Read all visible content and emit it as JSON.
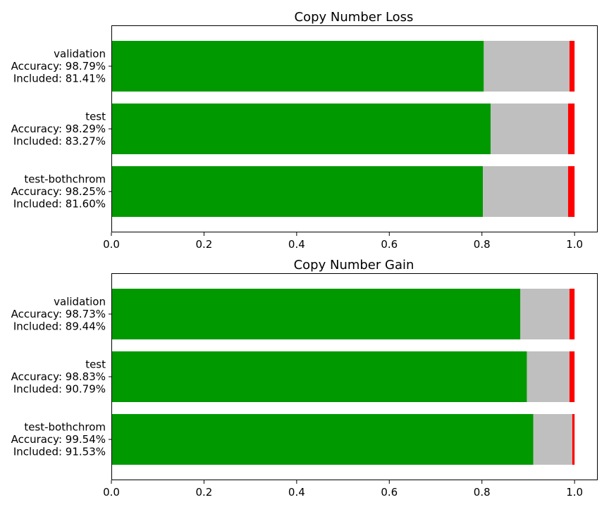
{
  "colors": {
    "correct": "#009900",
    "excluded": "#bfbfbf",
    "incorrect": "#ff0000"
  },
  "chart_data": [
    {
      "type": "bar",
      "orientation": "horizontal",
      "stacked": true,
      "title": "Copy Number Loss",
      "xlim": [
        0.0,
        1.05
      ],
      "xticks": [
        "0.0",
        "0.2",
        "0.4",
        "0.6",
        "0.8",
        "1.0"
      ],
      "grid": false,
      "categories": [
        {
          "lines": [
            "validation",
            "Accuracy: 98.79%",
            "Included: 81.41%"
          ],
          "segments": [
            0.804,
            0.185,
            0.011
          ]
        },
        {
          "lines": [
            "test",
            "Accuracy: 98.29%",
            "Included: 83.27%"
          ],
          "segments": [
            0.819,
            0.167,
            0.014
          ]
        },
        {
          "lines": [
            "test-bothchrom",
            "Accuracy: 98.25%",
            "Included: 81.60%"
          ],
          "segments": [
            0.802,
            0.184,
            0.014
          ]
        }
      ]
    },
    {
      "type": "bar",
      "orientation": "horizontal",
      "stacked": true,
      "title": "Copy Number Gain",
      "xlim": [
        0.0,
        1.05
      ],
      "xticks": [
        "0.0",
        "0.2",
        "0.4",
        "0.6",
        "0.8",
        "1.0"
      ],
      "grid": false,
      "categories": [
        {
          "lines": [
            "validation",
            "Accuracy: 98.73%",
            "Included: 89.44%"
          ],
          "segments": [
            0.883,
            0.106,
            0.011
          ]
        },
        {
          "lines": [
            "test",
            "Accuracy: 98.83%",
            "Included: 90.79%"
          ],
          "segments": [
            0.897,
            0.092,
            0.011
          ]
        },
        {
          "lines": [
            "test-bothchrom",
            "Accuracy: 99.54%",
            "Included: 91.53%"
          ],
          "segments": [
            0.911,
            0.084,
            0.005
          ]
        }
      ]
    }
  ]
}
